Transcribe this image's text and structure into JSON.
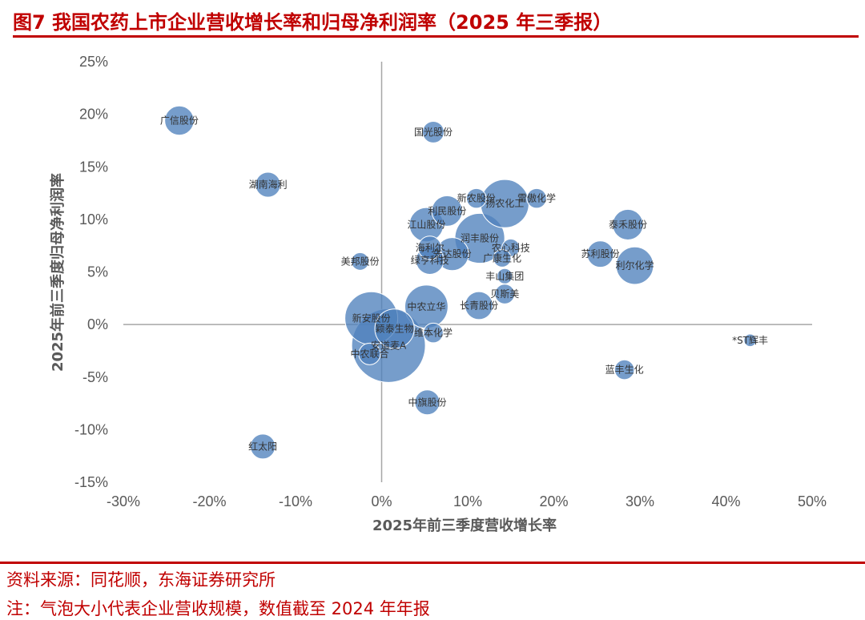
{
  "title": "图7  我国农药上市企业营收增长率和归母净利润率（2025 年三季报）",
  "footer": {
    "source": "资料来源：同花顺，东海证券研究所",
    "note": "注：气泡大小代表企业营收规模，数值截至 2024 年年报"
  },
  "colors": {
    "title": "#c00000",
    "bubble": "#4f81bd",
    "axis": "#a6a6a6",
    "text": "#595959"
  },
  "chart_data": {
    "type": "scatter",
    "xlabel": "2025年前三季度营收增长率",
    "ylabel": "2025年前三季度归母净利润率",
    "xlim": [
      -30,
      50
    ],
    "ylim": [
      -15,
      25
    ],
    "xticks": [
      "-30%",
      "-20%",
      "-10%",
      "0%",
      "10%",
      "20%",
      "30%",
      "40%",
      "50%"
    ],
    "yticks": [
      "25%",
      "20%",
      "15%",
      "10%",
      "5%",
      "0%",
      "-5%",
      "-10%",
      "-15%"
    ],
    "grid": false,
    "points": [
      {
        "name": "广信股份",
        "x": -23.5,
        "y": 19.4,
        "size": 5.5
      },
      {
        "name": "国光股份",
        "x": 6.0,
        "y": 18.3,
        "size": 3.0
      },
      {
        "name": "湖南海利",
        "x": -13.2,
        "y": 13.3,
        "size": 4.0
      },
      {
        "name": "新农股份",
        "x": 11.0,
        "y": 12.0,
        "size": 2.5
      },
      {
        "name": "扬农化工",
        "x": 14.3,
        "y": 11.5,
        "size": 15.0
      },
      {
        "name": "江山股份",
        "x": 5.2,
        "y": 9.5,
        "size": 7.5
      },
      {
        "name": "利民股份",
        "x": 7.6,
        "y": 10.8,
        "size": 6.0
      },
      {
        "name": "雷傲化学",
        "x": 18.0,
        "y": 12.0,
        "size": 2.5
      },
      {
        "name": "泰禾股份",
        "x": 28.6,
        "y": 9.5,
        "size": 6.0
      },
      {
        "name": "润丰股份",
        "x": 11.4,
        "y": 8.2,
        "size": 16.0
      },
      {
        "name": "海利尔",
        "x": 5.6,
        "y": 7.3,
        "size": 3.5
      },
      {
        "name": "农心科技",
        "x": 15.0,
        "y": 7.3,
        "size": 2.0
      },
      {
        "name": "苏利股份",
        "x": 25.4,
        "y": 6.7,
        "size": 4.5
      },
      {
        "name": "先达股份",
        "x": 8.2,
        "y": 6.7,
        "size": 7.0
      },
      {
        "name": "广康生化",
        "x": 14.0,
        "y": 6.3,
        "size": 2.0
      },
      {
        "name": "美邦股份",
        "x": -2.5,
        "y": 6.0,
        "size": 2.0
      },
      {
        "name": "绿亨科技",
        "x": 5.6,
        "y": 6.1,
        "size": 5.0
      },
      {
        "name": "利尔化学",
        "x": 29.4,
        "y": 5.6,
        "size": 9.0
      },
      {
        "name": "丰山集团",
        "x": 14.3,
        "y": 4.6,
        "size": 1.5
      },
      {
        "name": "贝斯美",
        "x": 14.3,
        "y": 2.9,
        "size": 2.5
      },
      {
        "name": "中农立华",
        "x": 5.2,
        "y": 1.7,
        "size": 12.0
      },
      {
        "name": "长青股份",
        "x": 11.3,
        "y": 1.8,
        "size": 5.0
      },
      {
        "name": "新安股份",
        "x": -1.2,
        "y": 0.6,
        "size": 18.0
      },
      {
        "name": "颖泰生物",
        "x": 1.5,
        "y": -0.4,
        "size": 10.0
      },
      {
        "name": "维本化学",
        "x": 6.0,
        "y": -0.8,
        "size": 2.5
      },
      {
        "name": "*ST辉丰",
        "x": 42.8,
        "y": -1.5,
        "size": 1.0
      },
      {
        "name": "安道麦A",
        "x": 0.8,
        "y": -2.0,
        "size": 35.0
      },
      {
        "name": "中农联合",
        "x": -1.4,
        "y": -2.8,
        "size": 3.0
      },
      {
        "name": "蓝丰生化",
        "x": 28.2,
        "y": -4.3,
        "size": 2.5
      },
      {
        "name": "中旗股份",
        "x": 5.3,
        "y": -7.4,
        "size": 4.0
      },
      {
        "name": "红太阳",
        "x": -13.8,
        "y": -11.6,
        "size": 4.0
      }
    ]
  }
}
